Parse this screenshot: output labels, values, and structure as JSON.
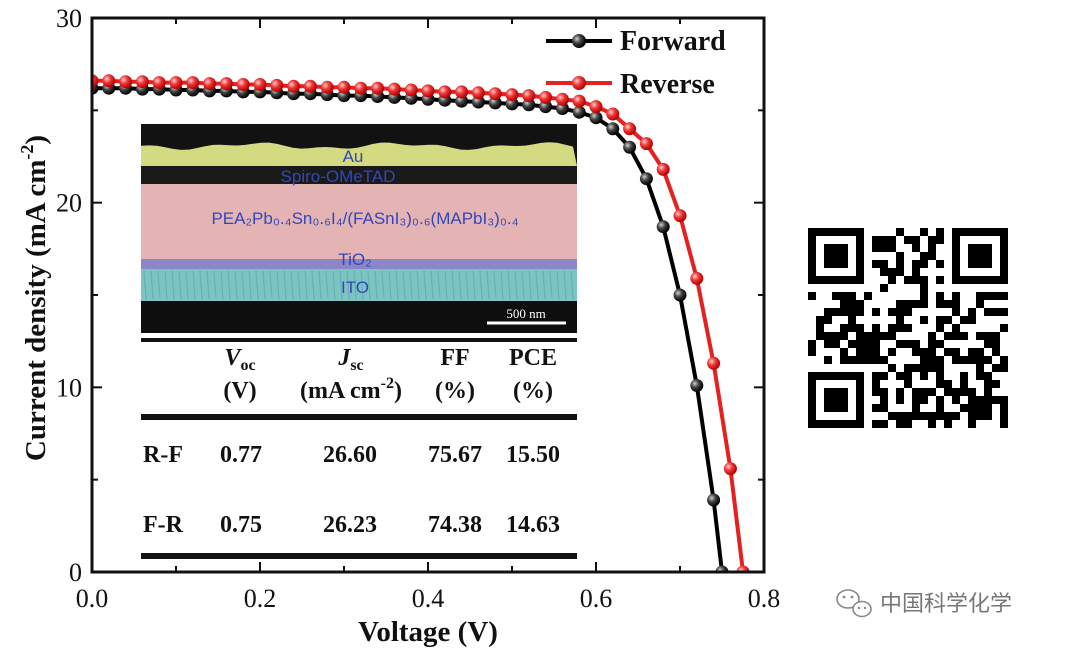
{
  "chart_data": {
    "type": "line",
    "xlabel": "Voltage (V)",
    "ylabel": "Current density (mA cm⁻²)",
    "ylabel_main": "Current density (mA cm",
    "ylabel_sup": "-2",
    "ylabel_end": ")",
    "xlim": [
      0.0,
      0.8
    ],
    "ylim": [
      0,
      30
    ],
    "xticks": [
      "0.0",
      "0.2",
      "0.4",
      "0.6",
      "0.8"
    ],
    "yticks": [
      "0",
      "10",
      "20",
      "30"
    ],
    "legend_position": "top-right",
    "series": [
      {
        "name": "Forward",
        "color": "#000000",
        "x": [
          0.0,
          0.02,
          0.04,
          0.06,
          0.08,
          0.1,
          0.12,
          0.14,
          0.16,
          0.18,
          0.2,
          0.22,
          0.24,
          0.26,
          0.28,
          0.3,
          0.32,
          0.34,
          0.36,
          0.38,
          0.4,
          0.42,
          0.44,
          0.46,
          0.48,
          0.5,
          0.52,
          0.54,
          0.56,
          0.58,
          0.6,
          0.62,
          0.64,
          0.66,
          0.68,
          0.7,
          0.72,
          0.74,
          0.75
        ],
        "y": [
          26.2,
          26.2,
          26.2,
          26.15,
          26.15,
          26.1,
          26.1,
          26.05,
          26.05,
          26.0,
          26.0,
          25.95,
          25.9,
          25.9,
          25.85,
          25.8,
          25.8,
          25.75,
          25.7,
          25.65,
          25.6,
          25.55,
          25.5,
          25.45,
          25.4,
          25.35,
          25.3,
          25.2,
          25.1,
          24.9,
          24.6,
          24.0,
          23.0,
          21.3,
          18.7,
          15.0,
          10.1,
          3.9,
          0.0
        ]
      },
      {
        "name": "Reverse",
        "color": "#e32121",
        "x": [
          0.0,
          0.02,
          0.04,
          0.06,
          0.08,
          0.1,
          0.12,
          0.14,
          0.16,
          0.18,
          0.2,
          0.22,
          0.24,
          0.26,
          0.28,
          0.3,
          0.32,
          0.34,
          0.36,
          0.38,
          0.4,
          0.42,
          0.44,
          0.46,
          0.48,
          0.5,
          0.52,
          0.54,
          0.56,
          0.58,
          0.6,
          0.62,
          0.64,
          0.66,
          0.68,
          0.7,
          0.72,
          0.74,
          0.76,
          0.775
        ],
        "y": [
          26.6,
          26.6,
          26.55,
          26.55,
          26.5,
          26.5,
          26.5,
          26.45,
          26.45,
          26.4,
          26.4,
          26.35,
          26.3,
          26.3,
          26.25,
          26.25,
          26.2,
          26.2,
          26.15,
          26.1,
          26.05,
          26.0,
          26.0,
          25.95,
          25.9,
          25.85,
          25.8,
          25.7,
          25.6,
          25.5,
          25.2,
          24.8,
          24.0,
          23.2,
          21.8,
          19.3,
          15.9,
          11.3,
          5.6,
          0.0
        ]
      }
    ],
    "inset": {
      "layers": {
        "au": "Au",
        "spiro": "Spiro-OMeTAD",
        "perovskite": "PEA₂Pb₀.₄Sn₀.₆I₄/(FASnI₃)₀.₆(MAPbI₃)₀.₄",
        "tio2": "TiO₂",
        "ito": "ITO"
      },
      "scale_bar": "500 nm"
    },
    "table": {
      "headers": [
        {
          "sym": "V",
          "sub": "oc",
          "unit": "(V)"
        },
        {
          "sym": "J",
          "sub": "sc",
          "unit_main": "(mA cm",
          "unit_sup": "-2",
          "unit_end": ")"
        },
        {
          "sym": "FF",
          "sub": "",
          "unit": "(%)"
        },
        {
          "sym": "PCE",
          "sub": "",
          "unit": "(%)"
        }
      ],
      "rows": [
        {
          "label": "R-F",
          "voc": "0.77",
          "jsc": "26.60",
          "ff": "75.67",
          "pce": "15.50"
        },
        {
          "label": "F-R",
          "voc": "0.75",
          "jsc": "26.23",
          "ff": "74.38",
          "pce": "14.63"
        }
      ]
    }
  },
  "watermark": {
    "text": "中国科学化学"
  },
  "colors": {
    "au_layer": "#e4ec8c",
    "perovskite_layer": "#e4b4b4",
    "ito_layer": "#7cc4c4",
    "tio2_layer": "#8a86c8"
  }
}
